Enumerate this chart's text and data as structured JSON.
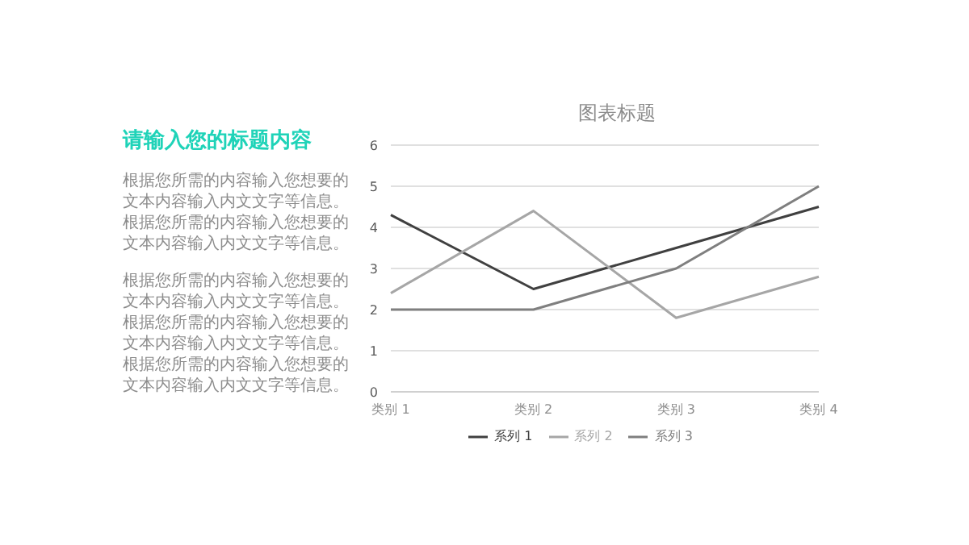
{
  "chart_data": [
    {
      "type": "other",
      "title": "请输入您的标题内容",
      "annotations": [
        "根据您所需的内容输入您想要的文本内容输入内文文字等信息。根据您所需的内容输入您想要的文本内容输入内文文字等信息。",
        "根据您所需的内容输入您想要的文本内容输入内文文字等信息。根据您所需的内容输入您想要的文本内容输入内文文字等信息。根据您所需的内容输入您想要的文本内容输入内文文字等信息。"
      ]
    },
    {
      "type": "line",
      "title": "图表标题",
      "categories": [
        "类别 1",
        "类别 2",
        "类别 3",
        "类别 4"
      ],
      "series": [
        {
          "name": "系列 1",
          "color": "#404040",
          "values": [
            4.3,
            2.5,
            3.5,
            4.5
          ]
        },
        {
          "name": "系列 2",
          "color": "#a6a6a6",
          "values": [
            2.4,
            4.4,
            1.8,
            2.8
          ]
        },
        {
          "name": "系列 3",
          "color": "#7f7f7f",
          "values": [
            2,
            2,
            3,
            5
          ]
        }
      ],
      "ylim": [
        0,
        6
      ],
      "yticks": [
        0,
        1,
        2,
        3,
        4,
        5,
        6
      ],
      "grid": "y",
      "legend": "bottom",
      "marker": "none",
      "line_style": "solid"
    }
  ]
}
